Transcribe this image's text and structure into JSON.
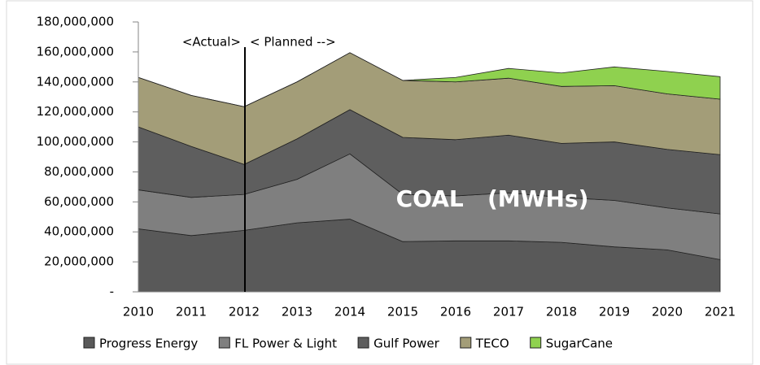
{
  "chart_data": {
    "type": "stacked_area",
    "categories": [
      "2010",
      "2011",
      "2012",
      "2013",
      "2014",
      "2015",
      "2016",
      "2017",
      "2018",
      "2019",
      "2020",
      "2021"
    ],
    "series": [
      {
        "name": "Progress Energy",
        "color": "#595959",
        "values": [
          42000000,
          37500000,
          41000000,
          46000000,
          48500000,
          33500000,
          34000000,
          34000000,
          33000000,
          30000000,
          28000000,
          21500000
        ]
      },
      {
        "name": "FL Power & Light",
        "color": "#7f7f7f",
        "values": [
          26000000,
          25500000,
          24000000,
          29000000,
          43500000,
          31500000,
          30000000,
          32000000,
          30000000,
          31000000,
          28000000,
          30500000
        ]
      },
      {
        "name": "Gulf Power",
        "color": "#5e5e5e",
        "values": [
          42000000,
          34000000,
          20000000,
          27000000,
          29500000,
          38000000,
          37500000,
          38500000,
          36000000,
          39000000,
          39000000,
          39500000
        ]
      },
      {
        "name": "TECO",
        "color": "#a39d78",
        "values": [
          33000000,
          34000000,
          38500000,
          38000000,
          38000000,
          38000000,
          38500000,
          38000000,
          38000000,
          37500000,
          37000000,
          37000000
        ]
      },
      {
        "name": "SugarCane",
        "color": "#8fd14f",
        "values": [
          0,
          0,
          0,
          0,
          0,
          0,
          3000000,
          6500000,
          9000000,
          12500000,
          15000000,
          15000000
        ]
      }
    ],
    "ylim": [
      0,
      180000000
    ],
    "yticks": [
      {
        "value": 0,
        "label": "-"
      },
      {
        "value": 20000000,
        "label": "20,000,000"
      },
      {
        "value": 40000000,
        "label": "40,000,000"
      },
      {
        "value": 60000000,
        "label": "60,000,000"
      },
      {
        "value": 80000000,
        "label": "80,000,000"
      },
      {
        "value": 100000000,
        "label": "100,000,000"
      },
      {
        "value": 120000000,
        "label": "120,000,000"
      },
      {
        "value": 140000000,
        "label": "140,000,000"
      },
      {
        "value": 160000000,
        "label": "160,000,000"
      },
      {
        "value": 180000000,
        "label": "180,000,000"
      }
    ],
    "annotations": [
      "<Actual>",
      "< Planned -->",
      "COAL   (MWHs)"
    ],
    "legend": "bottom"
  }
}
